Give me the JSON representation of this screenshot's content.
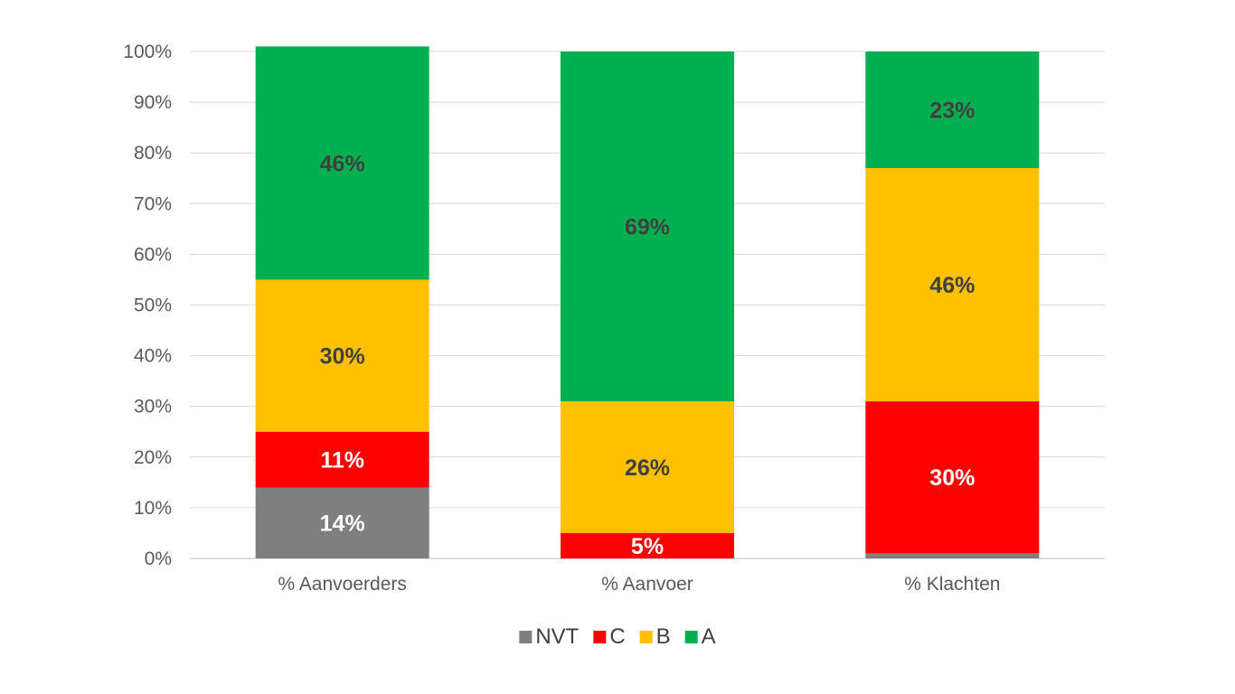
{
  "chart_data": {
    "type": "bar",
    "stacked": true,
    "categories": [
      "% Aanvoerders",
      "% Aanvoer",
      "% Klachten"
    ],
    "series": [
      {
        "name": "NVT",
        "color": "#7f7f7f",
        "values": [
          14,
          0,
          1
        ],
        "labels": [
          "14%",
          "",
          ""
        ],
        "label_color": "#ffffff"
      },
      {
        "name": "C",
        "color": "#ff0000",
        "values": [
          11,
          5,
          30
        ],
        "labels": [
          "11%",
          "5%",
          "30%"
        ],
        "label_color": "#ffffff"
      },
      {
        "name": "B",
        "color": "#ffc000",
        "values": [
          30,
          26,
          46
        ],
        "labels": [
          "30%",
          "26%",
          "46%"
        ],
        "label_color": "#404040"
      },
      {
        "name": "A",
        "color": "#00b050",
        "values": [
          46,
          69,
          23
        ],
        "labels": [
          "46%",
          "69%",
          "23%"
        ],
        "label_color": "#404040"
      }
    ],
    "ylim": [
      0,
      100
    ],
    "yticks": [
      "0%",
      "10%",
      "20%",
      "30%",
      "40%",
      "50%",
      "60%",
      "70%",
      "80%",
      "90%",
      "100%"
    ],
    "grid": true,
    "legend_position": "bottom"
  }
}
